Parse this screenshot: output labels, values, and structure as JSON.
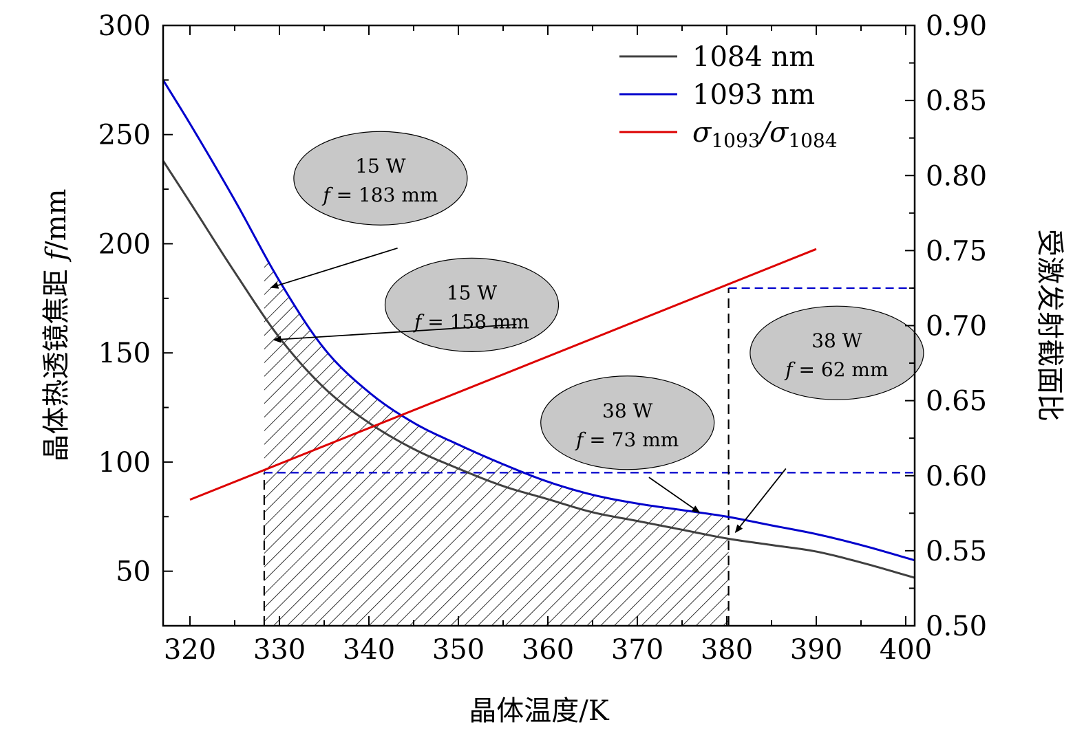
{
  "chart_data": {
    "type": "line",
    "xlabel": "晶体温度/K",
    "ylabel_left": {
      "prefix": "晶体热透镜焦距 ",
      "italic": "f",
      "suffix": "/mm"
    },
    "ylabel_right": "受激发射截面比",
    "x_range": [
      317,
      401
    ],
    "y_left_range": [
      25,
      300
    ],
    "y_right_range": [
      0.5,
      0.9
    ],
    "x_ticks": [
      "320",
      "330",
      "340",
      "350",
      "360",
      "370",
      "380",
      "390",
      "400"
    ],
    "y_left_ticks": [
      "50",
      "100",
      "150",
      "200",
      "250",
      "300"
    ],
    "y_right_ticks": [
      "0.50",
      "0.55",
      "0.60",
      "0.65",
      "0.70",
      "0.75",
      "0.80",
      "0.85",
      "0.90"
    ],
    "series": [
      {
        "name": "1084 nm",
        "axis": "left",
        "color": "#404040",
        "x": [
          317,
          320,
          325,
          330,
          335,
          340,
          345,
          350,
          355,
          360,
          365,
          370,
          375,
          380,
          385,
          390,
          395,
          401
        ],
        "y": [
          238,
          219,
          187,
          157,
          134,
          118,
          106,
          97,
          89,
          83,
          77,
          73,
          69,
          65,
          62,
          59,
          54,
          47
        ]
      },
      {
        "name": "1093 nm",
        "axis": "left",
        "color": "#0000cc",
        "x": [
          317,
          320,
          325,
          330,
          335,
          340,
          345,
          350,
          355,
          360,
          365,
          370,
          375,
          380,
          385,
          390,
          395,
          401
        ],
        "y": [
          275,
          255,
          220,
          183,
          152,
          132,
          118,
          108,
          99,
          91,
          85,
          81,
          78,
          75,
          71,
          67,
          62,
          55
        ]
      },
      {
        "name": "σ1093/σ1084",
        "axis": "right",
        "color": "#dd0000",
        "x": [
          320,
          390
        ],
        "y": [
          0.584,
          0.751
        ]
      }
    ],
    "legend": {
      "position": "top-right",
      "entries": [
        {
          "label": "1084 nm",
          "color": "#404040"
        },
        {
          "label": "1093 nm",
          "color": "#0000cc"
        },
        {
          "label": "σ",
          "sub1": "1093",
          "mid": "/σ",
          "sub2": "1084",
          "color": "#dd0000"
        }
      ]
    },
    "hatched_region": {
      "x_from": 328.3,
      "x_to": 380.2,
      "bounded_by": "1093 nm",
      "axis": "left"
    },
    "reference_lines": [
      {
        "orientation": "vertical",
        "x": 328.3,
        "from_right": 0.5,
        "to_right": 0.602,
        "style": "dashed",
        "color": "#000000"
      },
      {
        "orientation": "horizontal",
        "y_right": 0.602,
        "from_x": 328.3,
        "to_x": 401,
        "style": "dashed",
        "color": "#0000cc"
      },
      {
        "orientation": "vertical",
        "x": 380.2,
        "from_right": 0.5,
        "to_right": 0.725,
        "style": "dashed",
        "color": "#000000"
      },
      {
        "orientation": "horizontal",
        "y_right": 0.725,
        "from_x": 380.2,
        "to_x": 401,
        "style": "dashed",
        "color": "#0000cc"
      }
    ],
    "annotations": [
      {
        "line1": "15 W",
        "f_value": "183 mm",
        "cx": 341.3,
        "cy": 230,
        "tail": [
          343.2,
          198
        ],
        "head": [
          329.1,
          180
        ]
      },
      {
        "line1": "15 W",
        "f_value": "158 mm",
        "cx": 351.5,
        "cy": 172,
        "tail": [
          356.5,
          163
        ],
        "head": [
          329.4,
          156
        ]
      },
      {
        "line1": "38 W",
        "f_value": "73 mm",
        "cx": 368.9,
        "cy": 118,
        "tail": [
          371.3,
          93
        ],
        "head": [
          376.9,
          77
        ]
      },
      {
        "line1": "38 W",
        "f_value": "62 mm",
        "cx": 392.3,
        "cy": 150,
        "tail": [
          386.6,
          97
        ],
        "head": [
          381.0,
          68
        ]
      }
    ]
  }
}
